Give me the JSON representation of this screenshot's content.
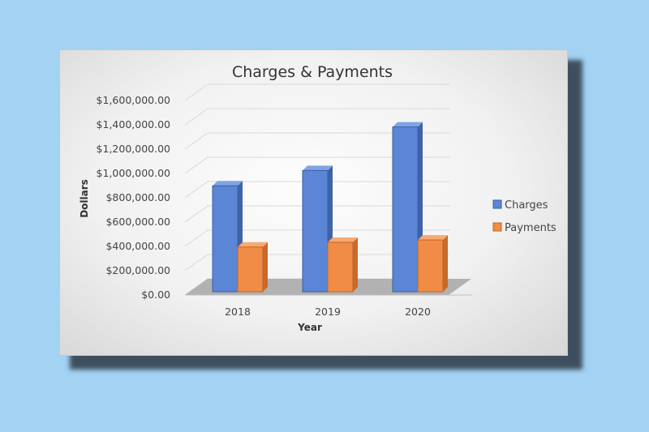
{
  "chart_data": {
    "type": "bar",
    "title": "Charges & Payments",
    "xlabel": "Year",
    "ylabel": "Dollars",
    "categories": [
      "2018",
      "2019",
      "2020"
    ],
    "series": [
      {
        "name": "Charges",
        "values": [
          900000,
          1030000,
          1400000
        ]
      },
      {
        "name": "Payments",
        "values": [
          380000,
          420000,
          440000
        ]
      }
    ],
    "ylim": [
      0,
      1600000
    ],
    "yticks": [
      0,
      200000,
      400000,
      600000,
      800000,
      1000000,
      1200000,
      1400000,
      1600000
    ],
    "ytick_labels": [
      "$0.00",
      "$200,000.00",
      "$400,000.00",
      "$600,000.00",
      "$800,000.00",
      "$1,000,000.00",
      "$1,200,000.00",
      "$1,400,000.00",
      "$1,600,000.00"
    ],
    "legend": "right",
    "grid": true,
    "colors": {
      "Charges": "#5b86d6",
      "Payments": "#f08c45"
    }
  }
}
